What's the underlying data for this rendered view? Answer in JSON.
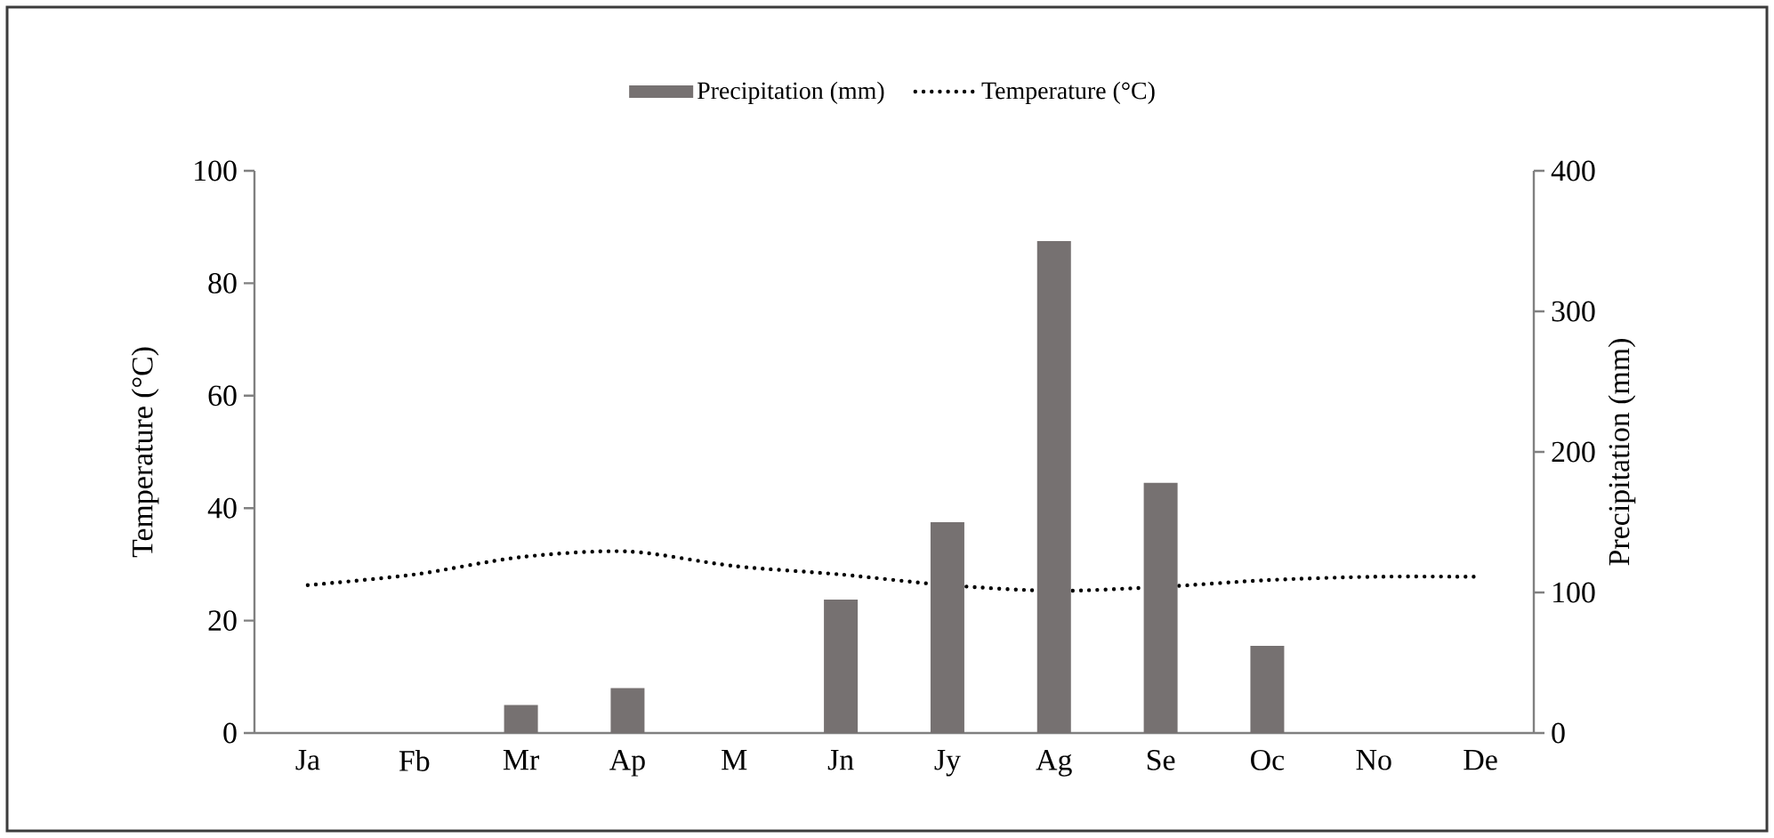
{
  "chart_data": {
    "type": "bar",
    "categories": [
      "Ja",
      "Fb",
      "Mr",
      "Ap",
      "M",
      "Jn",
      "Jy",
      "Ag",
      "Se",
      "Oc",
      "No",
      "De"
    ],
    "series": [
      {
        "name": "Precipitation (mm)",
        "axis": "y2",
        "color": "#767171",
        "values": [
          0,
          0,
          20,
          32,
          0,
          95,
          150,
          350,
          178,
          62,
          0,
          0
        ]
      },
      {
        "name": "Temperature (°C)",
        "type": "line",
        "color": "#000000",
        "line_style": "dotted",
        "values": [
          26.3,
          28.2,
          31.3,
          32.3,
          29.7,
          28.2,
          26.3,
          25.3,
          26,
          27.2,
          27.8,
          27.8
        ]
      }
    ],
    "ylabel": "Temperature (°C)",
    "y2label": "Precipitation (mm)",
    "ylim": [
      0,
      100
    ],
    "yticks": [
      0,
      20,
      40,
      60,
      80,
      100
    ],
    "y2lim": [
      0,
      400
    ],
    "y2ticks": [
      0,
      100,
      200,
      300,
      400
    ],
    "legend": "top"
  }
}
